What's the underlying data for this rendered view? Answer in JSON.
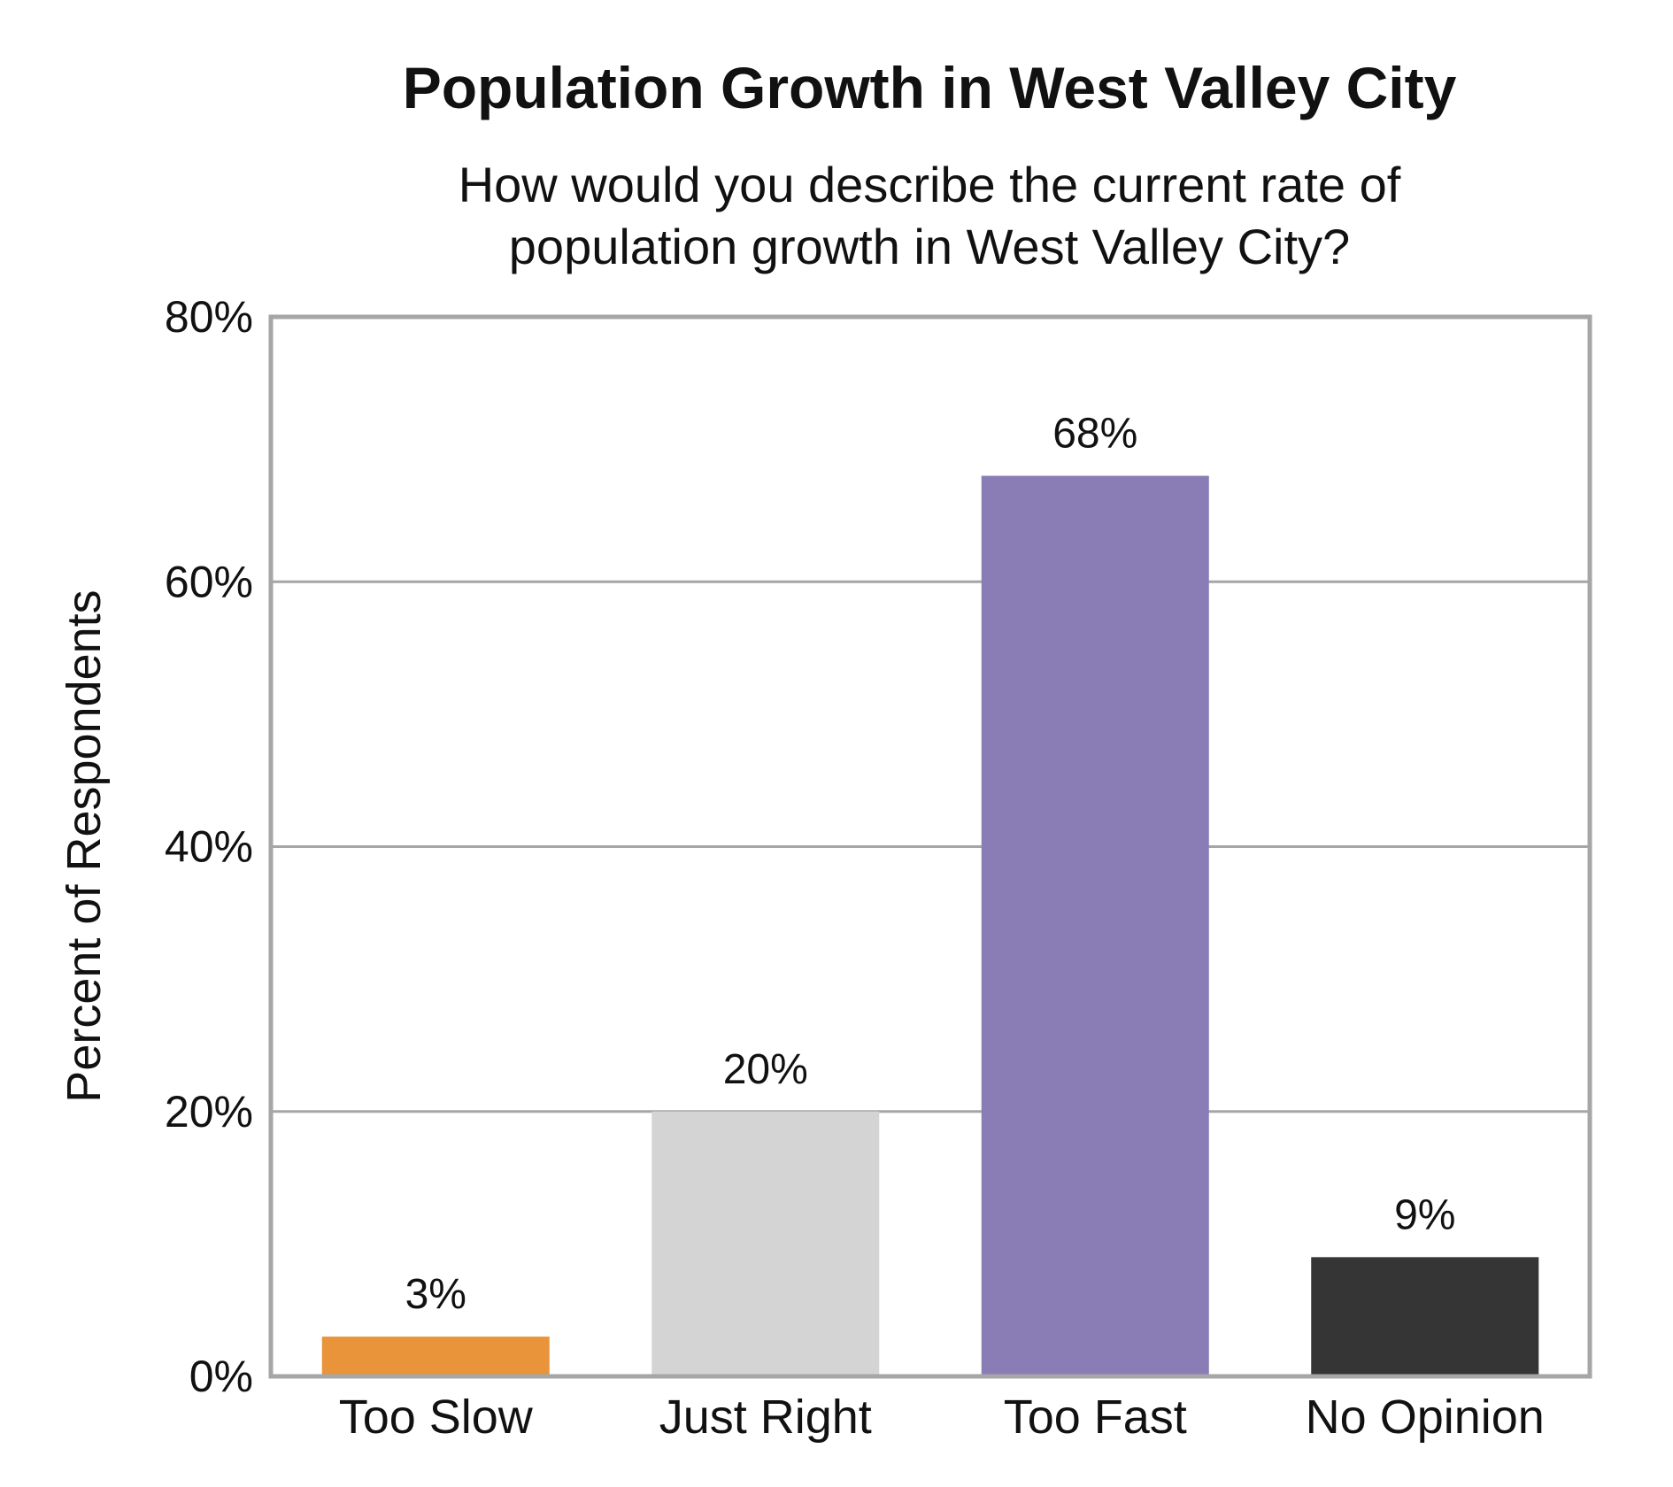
{
  "chart_data": {
    "type": "bar",
    "title": "Population Growth in West Valley City",
    "subtitle": [
      "How would you describe the current rate of",
      "population growth in West Valley City?"
    ],
    "ylabel": "Percent of Respondents",
    "xlabel": "",
    "ylim": [
      0,
      80
    ],
    "yticks": [
      0,
      20,
      40,
      60,
      80
    ],
    "ytick_labels": [
      "0%",
      "20%",
      "40%",
      "60%",
      "80%"
    ],
    "categories": [
      "Too Slow",
      "Just Right",
      "Too Fast",
      "No Opinion"
    ],
    "values": [
      3,
      20,
      68,
      9
    ],
    "data_labels": [
      "3%",
      "20%",
      "68%",
      "9%"
    ],
    "colors": [
      "#E9943A",
      "#D4D4D4",
      "#8A7DB5",
      "#353535"
    ],
    "grid": true,
    "legend": "none"
  }
}
